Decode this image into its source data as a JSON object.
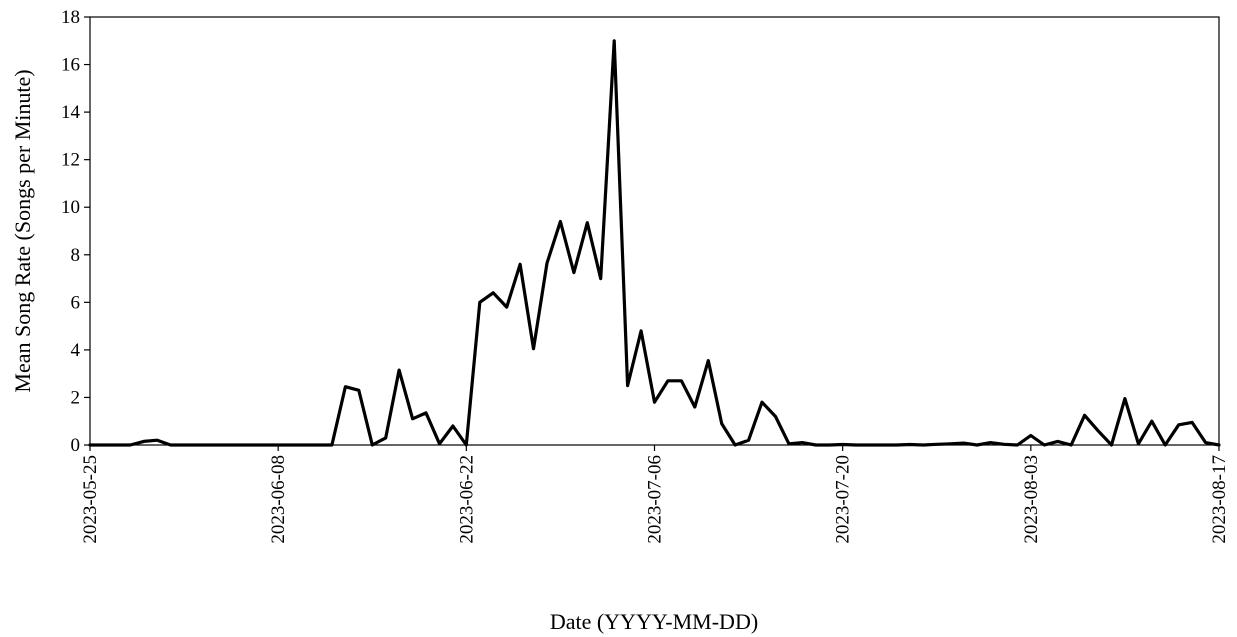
{
  "chart_data": {
    "type": "line",
    "title": "",
    "xlabel": "Date (YYYY-MM-DD)",
    "ylabel": "Mean Song Rate (Songs per Minute)",
    "ylim": [
      0,
      18
    ],
    "yticks": [
      "0",
      "2",
      "4",
      "6",
      "8",
      "10",
      "12",
      "14",
      "16",
      "18"
    ],
    "xlim": [
      "2023-05-25",
      "2023-08-17"
    ],
    "xticks": [
      "2023-05-25",
      "2023-06-08",
      "2023-06-22",
      "2023-07-06",
      "2023-07-20",
      "2023-08-03",
      "2023-08-17"
    ],
    "grid": false,
    "legend": "none",
    "line_color": "#000000",
    "series": [
      {
        "x": [
          "2023-05-25",
          "2023-05-26",
          "2023-05-27",
          "2023-05-28",
          "2023-05-29",
          "2023-05-30",
          "2023-05-31",
          "2023-06-01",
          "2023-06-02",
          "2023-06-03",
          "2023-06-04",
          "2023-06-05",
          "2023-06-06",
          "2023-06-07",
          "2023-06-08",
          "2023-06-09",
          "2023-06-10",
          "2023-06-11",
          "2023-06-12",
          "2023-06-13",
          "2023-06-14",
          "2023-06-15",
          "2023-06-16",
          "2023-06-17",
          "2023-06-18",
          "2023-06-19",
          "2023-06-20",
          "2023-06-21",
          "2023-06-22",
          "2023-06-23",
          "2023-06-24",
          "2023-06-25",
          "2023-06-26",
          "2023-06-27",
          "2023-06-28",
          "2023-06-29",
          "2023-06-30",
          "2023-07-01",
          "2023-07-02",
          "2023-07-03",
          "2023-07-04",
          "2023-07-05",
          "2023-07-06",
          "2023-07-07",
          "2023-07-08",
          "2023-07-09",
          "2023-07-10",
          "2023-07-11",
          "2023-07-12",
          "2023-07-13",
          "2023-07-14",
          "2023-07-15",
          "2023-07-16",
          "2023-07-17",
          "2023-07-18",
          "2023-07-19",
          "2023-07-20",
          "2023-07-21",
          "2023-07-22",
          "2023-07-23",
          "2023-07-24",
          "2023-07-25",
          "2023-07-26",
          "2023-07-27",
          "2023-07-28",
          "2023-07-29",
          "2023-07-30",
          "2023-07-31",
          "2023-08-01",
          "2023-08-02",
          "2023-08-03",
          "2023-08-04",
          "2023-08-05",
          "2023-08-06",
          "2023-08-07",
          "2023-08-08",
          "2023-08-09",
          "2023-08-10",
          "2023-08-11",
          "2023-08-12",
          "2023-08-13",
          "2023-08-14",
          "2023-08-15",
          "2023-08-16",
          "2023-08-17"
        ],
        "values": [
          0,
          0,
          0,
          0,
          0.15,
          0.2,
          0,
          0,
          0,
          0,
          0,
          0,
          0,
          0,
          0,
          0,
          0,
          0,
          0,
          2.45,
          2.3,
          0,
          0.3,
          3.15,
          1.1,
          1.35,
          0.05,
          0.8,
          0,
          6.0,
          6.4,
          5.8,
          7.6,
          4.05,
          7.65,
          9.4,
          7.25,
          9.35,
          7.0,
          17.0,
          2.5,
          4.8,
          1.8,
          2.7,
          2.7,
          1.6,
          3.55,
          0.9,
          0,
          0.2,
          1.8,
          1.2,
          0.05,
          0.1,
          0,
          0,
          0.02,
          0,
          0,
          0,
          0,
          0.02,
          0,
          0.03,
          0.05,
          0.08,
          0,
          0.1,
          0.03,
          0,
          0.4,
          0,
          0.15,
          0,
          1.25,
          0.6,
          0,
          1.95,
          0.05,
          1.0,
          0,
          0.85,
          0.95,
          0.1,
          0
        ]
      }
    ]
  }
}
